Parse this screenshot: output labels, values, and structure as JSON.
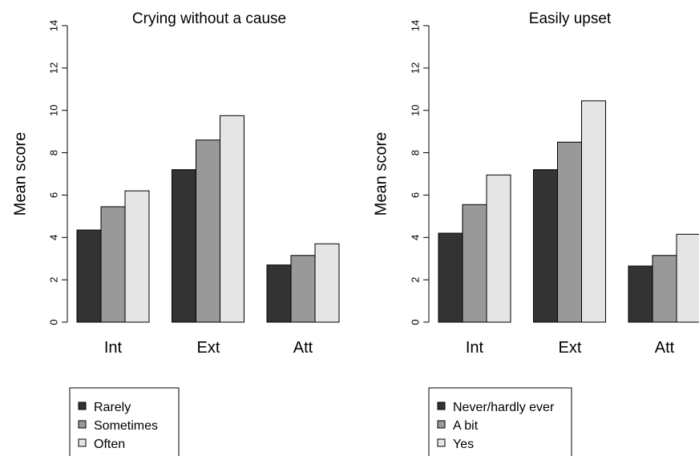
{
  "chart_data": [
    {
      "type": "bar",
      "title": "Crying without a cause",
      "xlabel": "",
      "ylabel": "Mean score",
      "ylim": [
        0,
        14
      ],
      "yticks": [
        0,
        2,
        4,
        6,
        8,
        10,
        12,
        14
      ],
      "categories": [
        "Int",
        "Ext",
        "Att"
      ],
      "series": [
        {
          "name": "Rarely",
          "color": "#333333",
          "values": [
            4.35,
            7.2,
            2.7
          ]
        },
        {
          "name": "Sometimes",
          "color": "#999999",
          "values": [
            5.45,
            8.6,
            3.15
          ]
        },
        {
          "name": "Often",
          "color": "#e5e5e5",
          "values": [
            6.2,
            9.75,
            3.7
          ]
        }
      ],
      "legend_position": "bottom-left",
      "grid": false
    },
    {
      "type": "bar",
      "title": "Easily upset",
      "xlabel": "",
      "ylabel": "Mean score",
      "ylim": [
        0,
        14
      ],
      "yticks": [
        0,
        2,
        4,
        6,
        8,
        10,
        12,
        14
      ],
      "categories": [
        "Int",
        "Ext",
        "Att"
      ],
      "series": [
        {
          "name": "Never/hardly ever",
          "color": "#333333",
          "values": [
            4.2,
            7.2,
            2.65
          ]
        },
        {
          "name": "A bit",
          "color": "#999999",
          "values": [
            5.55,
            8.5,
            3.15
          ]
        },
        {
          "name": "Yes",
          "color": "#e5e5e5",
          "values": [
            6.95,
            10.45,
            4.15
          ]
        }
      ],
      "legend_position": "bottom-left",
      "grid": false
    }
  ]
}
